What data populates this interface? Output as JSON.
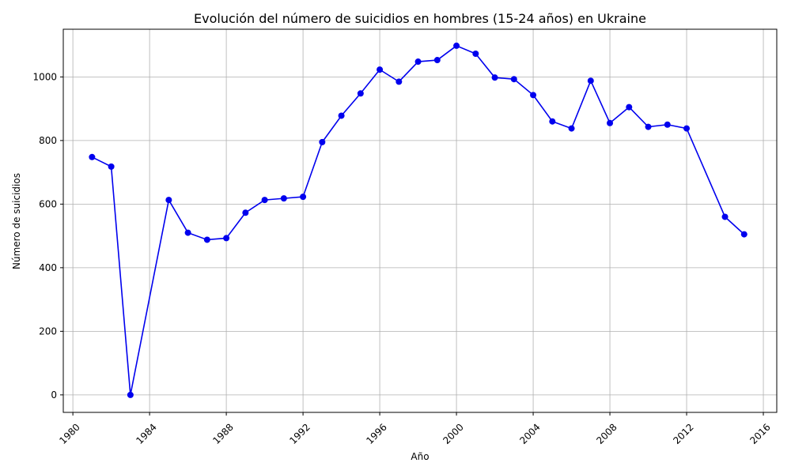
{
  "chart_data": {
    "type": "line",
    "title": "Evolución del número de suicidios en hombres (15-24 años) en Ukraine",
    "xlabel": "Año",
    "ylabel": "Número de suicidios",
    "xlim": [
      1979.5,
      2016.7
    ],
    "ylim": [
      -55,
      1150
    ],
    "grid": true,
    "line_color": "#0000ee",
    "x_ticks": [
      1980,
      1984,
      1988,
      1992,
      1996,
      2000,
      2004,
      2008,
      2012,
      2016
    ],
    "y_ticks": [
      0,
      200,
      400,
      600,
      800,
      1000
    ],
    "series": [
      {
        "x": [
          1981,
          1982,
          1983,
          1985,
          1986,
          1987,
          1988,
          1989,
          1990,
          1991,
          1992,
          1993,
          1994,
          1995,
          1996,
          1997,
          1998,
          1999,
          2000,
          2001,
          2002,
          2003,
          2004,
          2005,
          2006,
          2007,
          2008,
          2009,
          2010,
          2011,
          2012,
          2014,
          2015
        ],
        "y": [
          748,
          718,
          0,
          613,
          510,
          488,
          493,
          573,
          613,
          618,
          623,
          795,
          878,
          948,
          1023,
          985,
          1048,
          1053,
          1098,
          1073,
          998,
          993,
          943,
          860,
          838,
          988,
          855,
          905,
          843,
          850,
          838,
          560,
          505
        ]
      }
    ]
  }
}
